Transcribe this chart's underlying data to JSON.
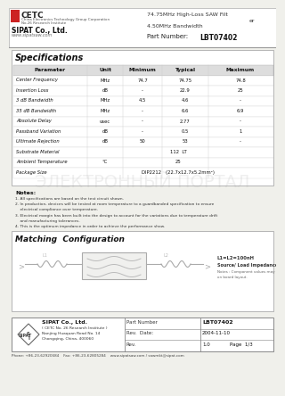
{
  "title_right_line1": "74.75MHz High-Loss SAW Filt",
  "title_right_line2": "er",
  "title_right_line3": "4.50MHz Bandwidth",
  "part_number_label": "Part Number:  LBT07402",
  "company_name": "SIPAT Co., Ltd.",
  "website": "www.sipatsaw.com",
  "cetc_line1": "China Electronics Technology Group Corporation",
  "cetc_line2": "No.26 Research Institute",
  "specs_title": "Specifications",
  "spec_headers": [
    "Parameter",
    "Unit",
    "Minimum",
    "Typical",
    "Maximum"
  ],
  "spec_rows": [
    [
      "Center Frequency",
      "MHz",
      "74.7",
      "74.75",
      "74.8"
    ],
    [
      "Insertion Loss",
      "dB",
      "-",
      "22.9",
      "25"
    ],
    [
      "3 dB Bandwidth",
      "MHz",
      "4.5",
      "4.6",
      "-"
    ],
    [
      "35 dB Bandwidth",
      "MHz",
      "-",
      "6.6",
      "6.9"
    ],
    [
      "Absolute Delay",
      "usec",
      "-",
      "2.77",
      "-"
    ],
    [
      "Passband Variation",
      "dB",
      "-",
      "0.5",
      "1"
    ],
    [
      "Ultimate Rejection",
      "dB",
      "50",
      "53",
      "-"
    ],
    [
      "Substrate Material",
      "",
      "",
      "112  LT",
      ""
    ],
    [
      "Ambient Temperature",
      "°C",
      "",
      "25",
      ""
    ],
    [
      "Package Size",
      "",
      "",
      "DIP2212   (22.7x12.7x5.2mm²)",
      ""
    ]
  ],
  "notes_title": "Notes:",
  "notes": [
    "1. All specifications are based on the test circuit shown.",
    "2. In production, devices will be tested at room temperature to a guardbanded specification to ensure",
    "    electrical compliance over temperature.",
    "3. Electrical margin has been built into the design to account for the variations due to temperature drift",
    "    and manufacturing tolerances.",
    "4. This is the optimum impedance in order to achieve the performance show."
  ],
  "matching_title": "Matching  Configuration",
  "matching_note1": "L1=L2=100nH",
  "matching_note2": "Source/ Load Impedance= 50 ohm",
  "matching_note3": "Notes : Component values may change depending",
  "matching_note4": "on board layout.",
  "footer_company": "SIPAT Co., Ltd.",
  "footer_cetc": "( CETC No. 26 Research Institute )",
  "footer_address1": "Nanjing Huaquan Road No. 14",
  "footer_address2": "Chongqing, China, 400060",
  "footer_part_number": "LBT07402",
  "footer_rev_date": "2004-11-10",
  "footer_rev": "1.0",
  "footer_page": "Page  1/3",
  "footer_phone": "Phone: +86-23-62920684    Fax: +86-23-62805284    www.sipatsaw.com / sawmkt@sipat.com",
  "bg_color": "#f0f0eb",
  "white": "#ffffff",
  "light_gray": "#e8e8e4",
  "border_color": "#999999",
  "text_dark": "#1a1a1a",
  "text_mid": "#444444",
  "text_light": "#777777"
}
